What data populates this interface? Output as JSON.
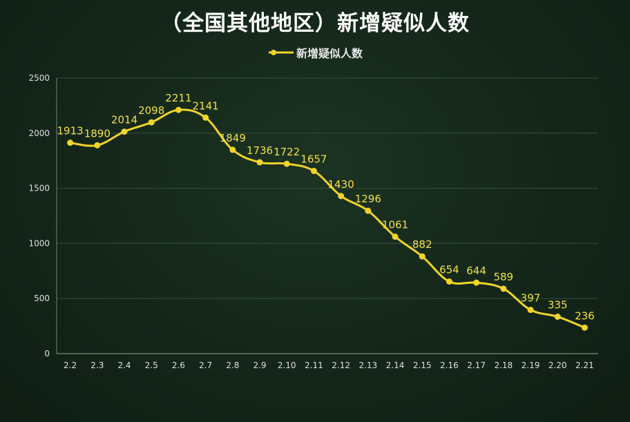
{
  "colors": {
    "series": "#f0d42a",
    "label": "#f2e14a",
    "grid": "#35503a",
    "axis_text": "#e0e0e0",
    "title": "#ffffff"
  },
  "chart_data": {
    "type": "line",
    "title": "（全国其他地区）新增疑似人数",
    "legend_position": "top",
    "grid": true,
    "smooth": true,
    "ylim": [
      0,
      2500
    ],
    "yticks": [
      0,
      500,
      1000,
      1500,
      2000,
      2500
    ],
    "categories": [
      "2.2",
      "2.3",
      "2.4",
      "2.5",
      "2.6",
      "2.7",
      "2.8",
      "2.9",
      "2.10",
      "2.11",
      "2.12",
      "2.13",
      "2.14",
      "2.15",
      "2.16",
      "2.17",
      "2.18",
      "2.19",
      "2.20",
      "2.21"
    ],
    "series": [
      {
        "name": "新增疑似人数",
        "values": [
          1913,
          1890,
          2014,
          2098,
          2211,
          2141,
          1849,
          1736,
          1722,
          1657,
          1430,
          1296,
          1061,
          882,
          654,
          644,
          589,
          397,
          335,
          236
        ]
      }
    ]
  }
}
